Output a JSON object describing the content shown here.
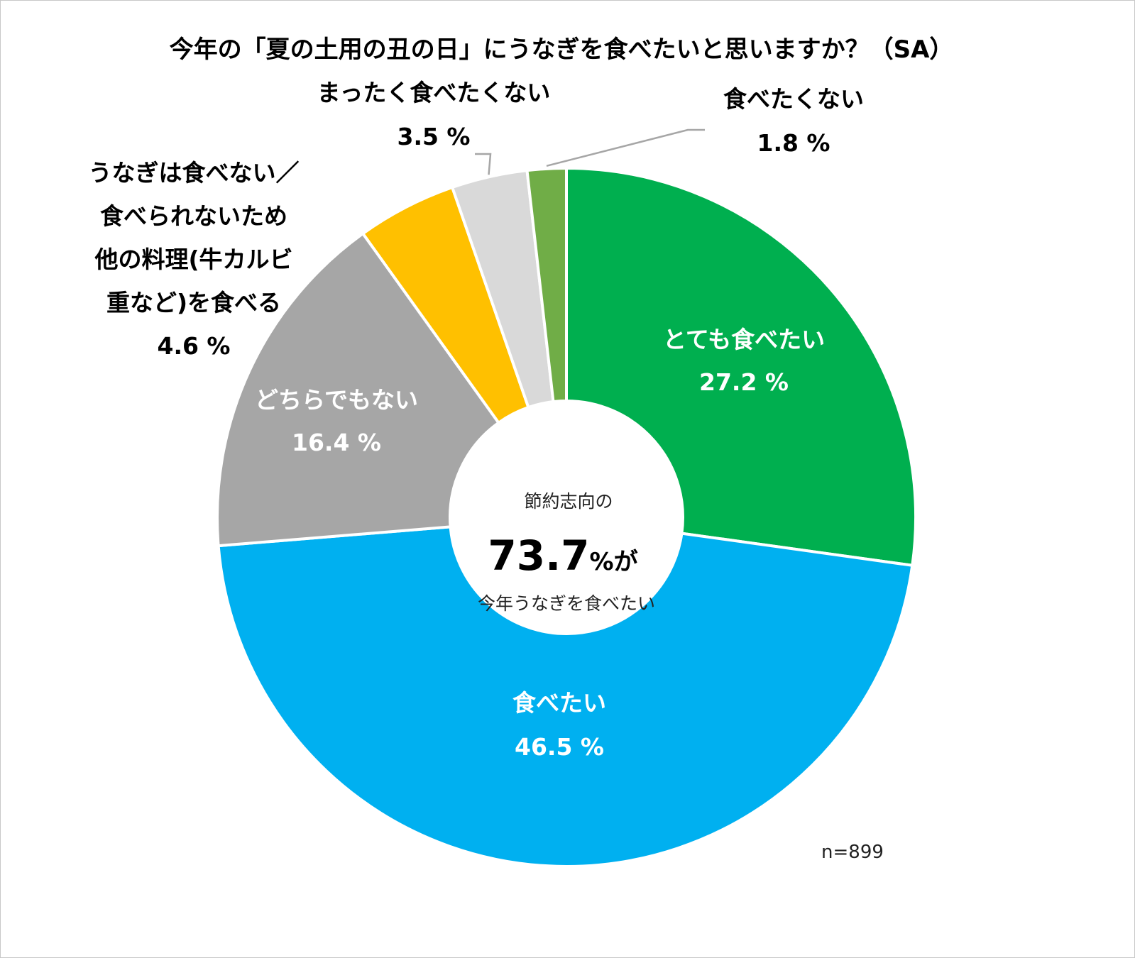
{
  "chart_data": {
    "type": "pie",
    "variant": "donut",
    "title": "今年の「夏の土用の丑の日」にうなぎを食べたいと思いますか？（SA）",
    "unit": "%",
    "start_angle_deg": 0,
    "direction": "clockwise",
    "slices": [
      {
        "label_lines": [
          "とても食べたい"
        ],
        "value": 27.2,
        "value_text": "27.2 %",
        "color": "#00AF4F",
        "label_style": "inside"
      },
      {
        "label_lines": [
          "食べたい"
        ],
        "value": 46.5,
        "value_text": "46.5 %",
        "color": "#00B0F0",
        "label_style": "inside"
      },
      {
        "label_lines": [
          "どちらでもない"
        ],
        "value": 16.4,
        "value_text": "16.4 %",
        "color": "#A6A6A6",
        "label_style": "inside"
      },
      {
        "label_lines": [
          "うなぎは食べない／",
          "食べられないため",
          "他の料理(牛カルビ",
          "重など)を食べる"
        ],
        "value": 4.6,
        "value_text": "4.6 %",
        "color": "#FFC000",
        "label_style": "outside"
      },
      {
        "label_lines": [
          "まったく食べたくない"
        ],
        "value": 3.5,
        "value_text": "3.5 %",
        "color": "#D9D9D9",
        "label_style": "outside-leader"
      },
      {
        "label_lines": [
          "食べたくない"
        ],
        "value": 1.8,
        "value_text": "1.8 %",
        "color": "#70AD47",
        "label_style": "outside-leader"
      }
    ],
    "center": {
      "line1": "節約志向の",
      "value": "73.7",
      "unit_text": "%が",
      "line3": "今年うなぎを食べたい"
    },
    "note": "n=899"
  }
}
